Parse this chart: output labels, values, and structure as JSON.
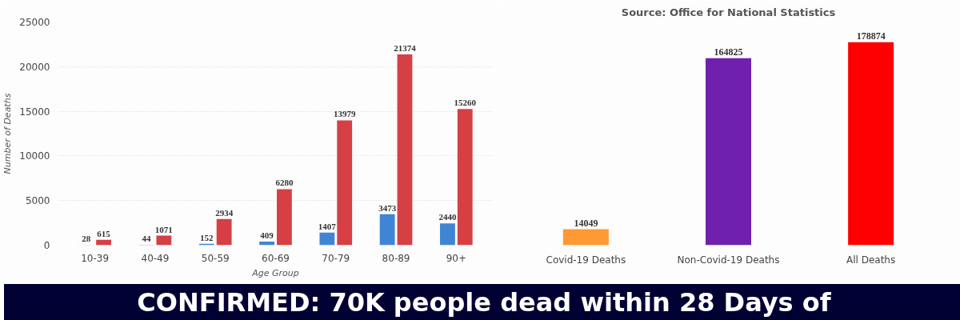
{
  "chart_data": [
    {
      "type": "bar",
      "xlabel": "Age Group",
      "ylabel": "Number of Deaths",
      "categories": [
        "10-39",
        "40-49",
        "50-59",
        "60-69",
        "70-79",
        "80-89",
        "90+"
      ],
      "series": [
        {
          "color": "#3f85d4",
          "values": [
            28,
            44,
            152,
            409,
            1407,
            3473,
            2440
          ]
        },
        {
          "color": "#d64045",
          "values": [
            615,
            1071,
            2934,
            6280,
            13979,
            21374,
            15260
          ]
        }
      ],
      "ylim": [
        0,
        25000
      ],
      "yticks": [
        0,
        5000,
        10000,
        15000,
        20000,
        25000
      ],
      "grid": "y",
      "data_labels": true
    },
    {
      "type": "bar",
      "subtitle": "Source: Office for National Statistics",
      "categories": [
        "Covid-19 Deaths",
        "Non-Covid-19 Deaths",
        "All Deaths"
      ],
      "values": [
        14049,
        164825,
        178874
      ],
      "colors": [
        "#ff9933",
        "#6f21ad",
        "#ff0000"
      ],
      "data_labels": true,
      "annotations": [
        "CONFIRMED: 70K people dead within 28 Days of"
      ]
    }
  ]
}
